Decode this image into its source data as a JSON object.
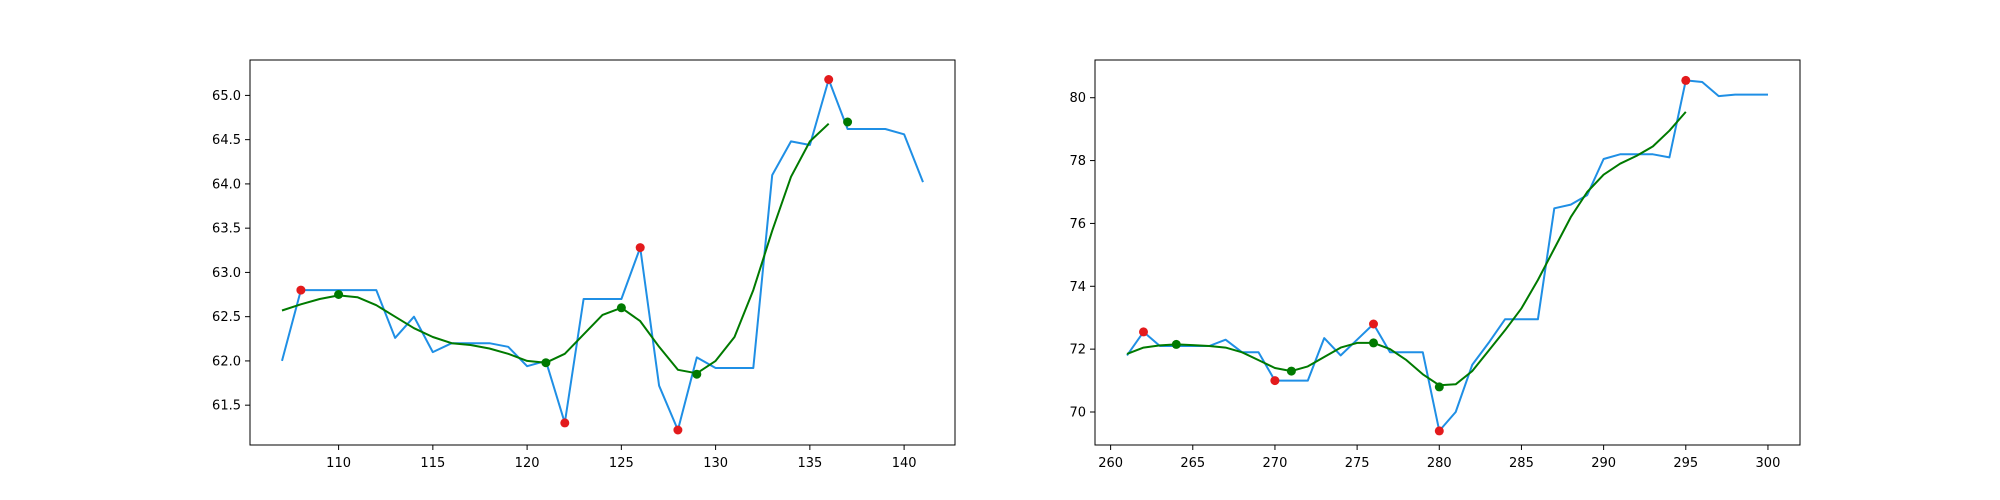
{
  "chart_data": [
    {
      "type": "line",
      "title": "",
      "xlabel": "",
      "ylabel": "",
      "xlim": [
        105.3,
        142.7
      ],
      "ylim": [
        61.05,
        65.4
      ],
      "grid": false,
      "x_ticks": [
        110,
        115,
        120,
        125,
        130,
        135,
        140
      ],
      "y_ticks": [
        61.5,
        62.0,
        62.5,
        63.0,
        63.5,
        64.0,
        64.5,
        65.0
      ],
      "x_tick_labels": [
        "110",
        "115",
        "120",
        "125",
        "130",
        "135",
        "140"
      ],
      "y_tick_labels": [
        "61.5",
        "62.0",
        "62.5",
        "63.0",
        "63.5",
        "64.0",
        "64.5",
        "65.0"
      ],
      "series": [
        {
          "style": "line",
          "color": "#1f8fe5",
          "x": [
            107,
            108,
            109,
            110,
            111,
            112,
            113,
            114,
            115,
            116,
            117,
            118,
            119,
            120,
            121,
            122,
            123,
            124,
            125,
            126,
            127,
            128,
            129,
            130,
            131,
            132,
            133,
            134,
            135,
            136,
            137,
            138,
            139,
            140,
            141
          ],
          "y": [
            62.0,
            62.8,
            62.8,
            62.8,
            62.8,
            62.8,
            62.26,
            62.5,
            62.1,
            62.2,
            62.2,
            62.2,
            62.16,
            61.94,
            62.0,
            61.3,
            62.7,
            62.7,
            62.7,
            63.28,
            61.72,
            61.22,
            62.04,
            61.92,
            61.92,
            61.92,
            64.1,
            64.48,
            64.44,
            65.18,
            64.62,
            64.62,
            64.62,
            64.56,
            64.02
          ]
        },
        {
          "style": "line",
          "color": "#007a00",
          "x": [
            107,
            108,
            109,
            110,
            111,
            112,
            113,
            114,
            115,
            116,
            117,
            118,
            119,
            120,
            121,
            122,
            123,
            124,
            125,
            126,
            127,
            128,
            129,
            130,
            131,
            132,
            133,
            134,
            135,
            136
          ],
          "y": [
            62.57,
            62.64,
            62.7,
            62.74,
            62.72,
            62.63,
            62.5,
            62.37,
            62.27,
            62.2,
            62.18,
            62.14,
            62.08,
            62.0,
            61.98,
            62.08,
            62.3,
            62.52,
            62.6,
            62.45,
            62.16,
            61.9,
            61.86,
            62.0,
            62.27,
            62.8,
            63.47,
            64.08,
            64.48,
            64.68
          ]
        },
        {
          "style": "markers",
          "color": "#e31a1c",
          "x": [
            108,
            122,
            126,
            128,
            136
          ],
          "y": [
            62.8,
            61.3,
            63.28,
            61.22,
            65.18
          ]
        },
        {
          "style": "markers",
          "color": "#007a00",
          "x": [
            110,
            121,
            125,
            129,
            137
          ],
          "y": [
            62.75,
            61.98,
            62.6,
            61.85,
            64.7
          ]
        }
      ]
    },
    {
      "type": "line",
      "title": "",
      "xlabel": "",
      "ylabel": "",
      "xlim": [
        259.05,
        301.95
      ],
      "ylim": [
        68.95,
        81.2
      ],
      "grid": false,
      "x_ticks": [
        260,
        265,
        270,
        275,
        280,
        285,
        290,
        295,
        300
      ],
      "y_ticks": [
        70,
        72,
        74,
        76,
        78,
        80
      ],
      "x_tick_labels": [
        "260",
        "265",
        "270",
        "275",
        "280",
        "285",
        "290",
        "295",
        "300"
      ],
      "y_tick_labels": [
        "70",
        "72",
        "74",
        "76",
        "78",
        "80"
      ],
      "series": [
        {
          "style": "line",
          "color": "#1f8fe5",
          "x": [
            261,
            262,
            263,
            264,
            265,
            266,
            267,
            268,
            269,
            270,
            271,
            272,
            273,
            274,
            275,
            276,
            277,
            278,
            279,
            280,
            281,
            282,
            283,
            284,
            285,
            286,
            287,
            288,
            289,
            290,
            291,
            292,
            293,
            294,
            295,
            296,
            297,
            298,
            299,
            300
          ],
          "y": [
            71.8,
            72.55,
            72.1,
            72.1,
            72.1,
            72.1,
            72.3,
            71.9,
            71.9,
            71.0,
            71.0,
            71.0,
            72.35,
            71.8,
            72.3,
            72.8,
            71.9,
            71.9,
            71.9,
            69.4,
            70.0,
            71.5,
            72.2,
            72.95,
            72.95,
            72.95,
            76.48,
            76.6,
            76.9,
            78.05,
            78.2,
            78.2,
            78.2,
            78.1,
            80.55,
            80.5,
            80.05,
            80.1,
            80.1,
            80.1
          ]
        },
        {
          "style": "line",
          "color": "#007a00",
          "x": [
            261,
            262,
            263,
            264,
            265,
            266,
            267,
            268,
            269,
            270,
            271,
            272,
            273,
            274,
            275,
            276,
            277,
            278,
            279,
            280,
            281,
            282,
            283,
            284,
            285,
            286,
            287,
            288,
            289,
            290,
            291,
            292,
            293,
            294,
            295
          ],
          "y": [
            71.85,
            72.05,
            72.12,
            72.15,
            72.13,
            72.1,
            72.05,
            71.9,
            71.65,
            71.4,
            71.3,
            71.45,
            71.75,
            72.05,
            72.2,
            72.2,
            72.0,
            71.65,
            71.2,
            70.85,
            70.88,
            71.3,
            71.95,
            72.6,
            73.3,
            74.2,
            75.2,
            76.2,
            77.0,
            77.55,
            77.9,
            78.15,
            78.45,
            78.95,
            79.55
          ]
        },
        {
          "style": "markers",
          "color": "#e31a1c",
          "x": [
            262,
            270,
            276,
            280,
            295
          ],
          "y": [
            72.55,
            71.0,
            72.8,
            69.4,
            80.55
          ]
        },
        {
          "style": "markers",
          "color": "#007a00",
          "x": [
            264,
            271,
            276,
            280
          ],
          "y": [
            72.15,
            71.3,
            72.2,
            70.8
          ]
        }
      ]
    }
  ]
}
